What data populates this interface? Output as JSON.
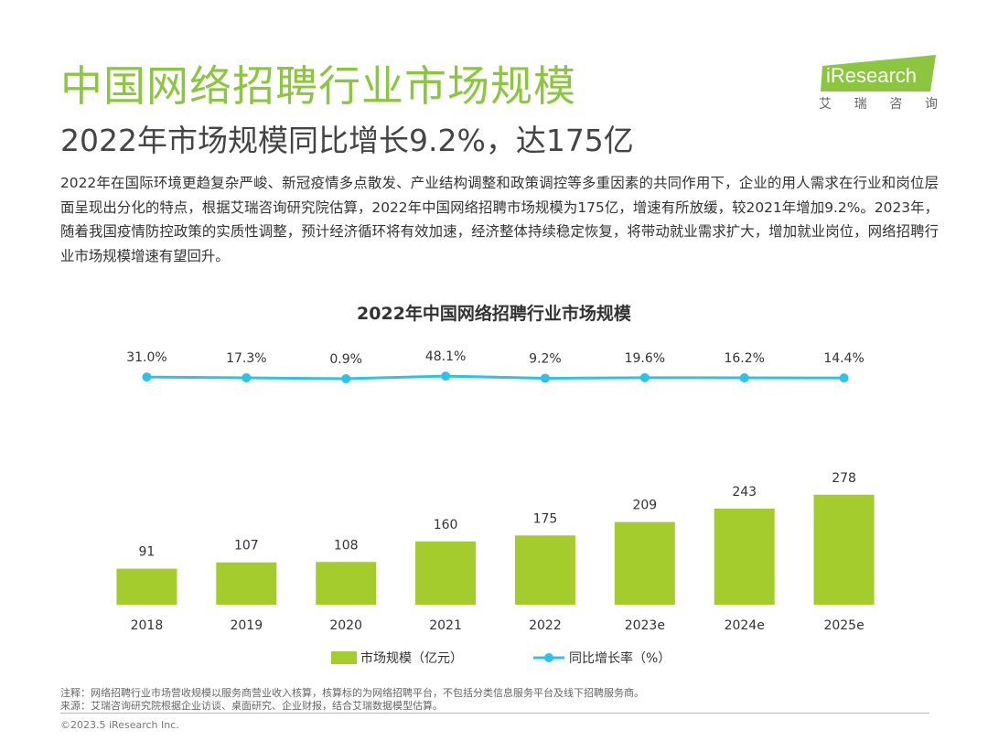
{
  "header": {
    "title": "中国网络招聘行业市场规模",
    "subtitle": "2022年市场规模同比增长9.2%，达175亿",
    "logo_text": "iResearch",
    "logo_tagline": [
      "艾",
      "瑞",
      "咨",
      "询"
    ]
  },
  "description": "2022年在国际环境更趋复杂严峻、新冠疫情多点散发、产业结构调整和政策调控等多重因素的共同作用下，企业的用人需求在行业和岗位层面呈现出分化的特点，根据艾瑞咨询研究院估算，2022年中国网络招聘市场规模为175亿，增速有所放缓，较2021年增加9.2%。2023年，随着我国疫情防控政策的实质性调整，预计经济循环将有效加速，经济整体持续稳定恢复，将带动就业需求扩大，增加就业岗位，网络招聘行业市场规模增速有望回升。",
  "colors": {
    "title_green": "#8cc63f",
    "bar": "#a5cc2d",
    "line": "#2cc2eb"
  },
  "chart_data": {
    "type": "bar",
    "title": "2022年中国网络招聘行业市场规模",
    "categories": [
      "2018",
      "2019",
      "2020",
      "2021",
      "2022",
      "2023e",
      "2024e",
      "2025e"
    ],
    "series": [
      {
        "name": "市场规模（亿元）",
        "type": "bar",
        "values": [
          91,
          107,
          108,
          160,
          175,
          209,
          243,
          278
        ],
        "labels": [
          "91",
          "107",
          "108",
          "160",
          "175",
          "209",
          "243",
          "278"
        ]
      },
      {
        "name": "同比增长率（%）",
        "type": "line",
        "values": [
          31.0,
          17.3,
          0.9,
          48.1,
          9.2,
          19.6,
          16.2,
          14.4
        ],
        "labels": [
          "31.0%",
          "17.3%",
          "0.9%",
          "48.1%",
          "9.2%",
          "19.6%",
          "16.2%",
          "14.4%"
        ]
      }
    ],
    "ylim": [
      0,
      300
    ],
    "legend_position": "bottom"
  },
  "footer": {
    "note": "注释：网络招聘行业市场营收规模以服务商营业收入核算，核算标的为网络招聘平台，不包括分类信息服务平台及线下招聘服务商。",
    "source": "来源：艾瑞咨询研究院根据企业访谈、桌面研究、企业财报，结合艾瑞数据模型估算。",
    "copyright": "©2023.5 iResearch Inc."
  }
}
